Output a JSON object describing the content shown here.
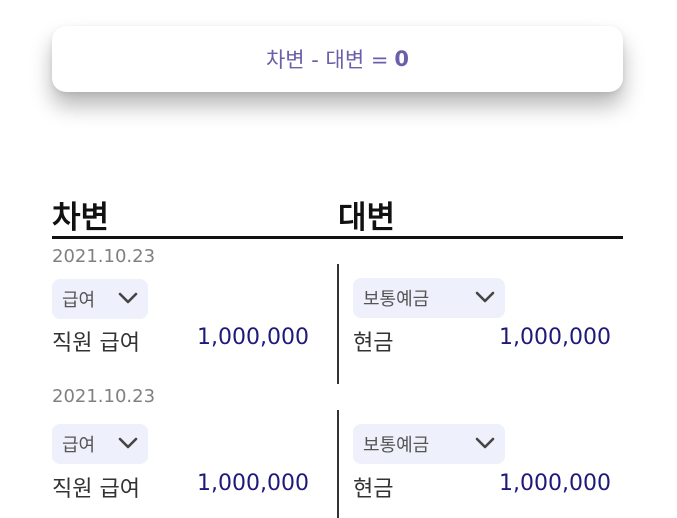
{
  "summary": {
    "label": "차변 - 대변 =",
    "total": "0"
  },
  "headers": {
    "debit": "차변",
    "credit": "대변"
  },
  "entries": [
    {
      "date": "2021.10.23",
      "debit": {
        "category": "급여",
        "account": "직원 급여",
        "amount": "1,000,000"
      },
      "credit": {
        "category": "보통예금",
        "account": "현금",
        "amount": "1,000,000"
      }
    },
    {
      "date": "2021.10.23",
      "debit": {
        "category": "급여",
        "account": "직원 급여",
        "amount": "1,000,000"
      },
      "credit": {
        "category": "보통예금",
        "account": "현금",
        "amount": "1,000,000"
      }
    }
  ],
  "colors": {
    "accent": "#6a5fa8",
    "amount": "#1f1a7a",
    "select_bg": "#eef1fb"
  },
  "icons": {
    "dropdown": "chevron-down-icon"
  }
}
